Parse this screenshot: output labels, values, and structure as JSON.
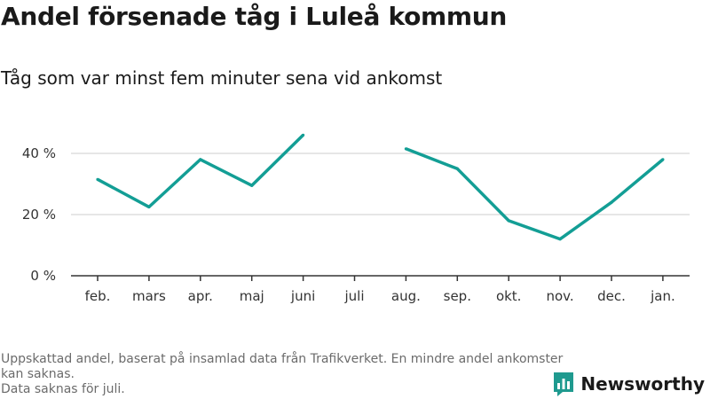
{
  "colors": {
    "line": "#139e95",
    "grid": "#dddddd",
    "axis": "#333333",
    "brand": "#1f9a8f"
  },
  "footnote": {
    "line1": "Uppskattad andel, baserat på insamlad data från Trafikverket. En mindre andel ankomster kan saknas.",
    "line2": "Data saknas för juli."
  },
  "brand": {
    "name": "Newsworthy",
    "icon": "newsworthy-logo-icon"
  },
  "chart_data": {
    "type": "line",
    "title": "Andel försenade tåg i Luleå kommun",
    "subtitle": "Tåg som var minst fem minuter sena vid ankomst",
    "xlabel": "",
    "ylabel": "",
    "categories": [
      "feb.",
      "mars",
      "apr.",
      "maj",
      "juni",
      "juli",
      "aug.",
      "sep.",
      "okt.",
      "nov.",
      "dec.",
      "jan."
    ],
    "series": [
      {
        "values": [
          31.5,
          22.5,
          38,
          29.5,
          46,
          null,
          41.5,
          35,
          18,
          12,
          24,
          38
        ]
      }
    ],
    "ylim": [
      0,
      50
    ],
    "yticks": [
      0,
      20,
      40
    ],
    "ytick_labels": [
      "0 %",
      "20 %",
      "40 %"
    ],
    "grid": true,
    "legend": "none"
  }
}
